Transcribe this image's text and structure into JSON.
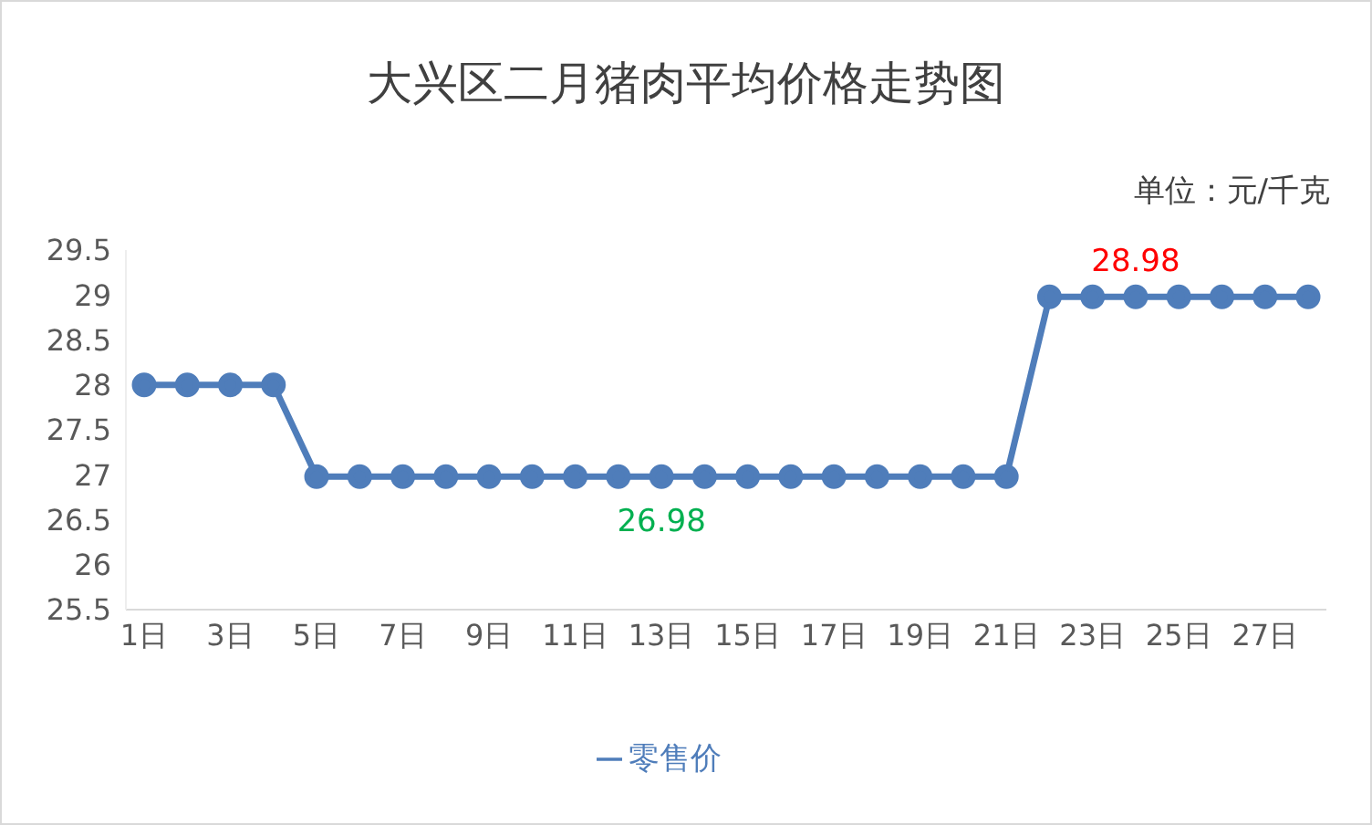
{
  "chart_data": {
    "type": "line",
    "title": "大兴区二月猪肉平均价格走势图",
    "annotations": [
      "单位：元/千克"
    ],
    "categories": [
      "1日",
      null,
      "3日",
      null,
      "5日",
      null,
      "7日",
      null,
      "9日",
      null,
      "11日",
      null,
      "13日",
      null,
      "15日",
      null,
      "17日",
      null,
      "19日",
      null,
      "21日",
      null,
      "23日",
      null,
      "25日",
      null,
      "27日",
      null
    ],
    "series": [
      {
        "name": "零售价",
        "color": "#4f7dba",
        "values": [
          28,
          28,
          28,
          28,
          26.98,
          26.98,
          26.98,
          26.98,
          26.98,
          26.98,
          26.98,
          26.98,
          26.98,
          26.98,
          26.98,
          26.98,
          26.98,
          26.98,
          26.98,
          26.98,
          26.98,
          28.98,
          28.98,
          28.98,
          28.98,
          28.98,
          28.98,
          28.98
        ],
        "value_labels": [
          null,
          null,
          null,
          null,
          null,
          null,
          null,
          null,
          null,
          null,
          null,
          null,
          "26.98",
          null,
          null,
          null,
          null,
          null,
          null,
          null,
          null,
          null,
          null,
          "28.98",
          null,
          null,
          null,
          null
        ]
      }
    ],
    "ylim": [
      25.5,
      29.5
    ],
    "yticks": [
      25.5,
      26,
      26.5,
      27,
      27.5,
      28,
      28.5,
      29,
      29.5
    ],
    "grid": false,
    "legend": "bottom",
    "marker": "circle",
    "line_style": "solid"
  }
}
